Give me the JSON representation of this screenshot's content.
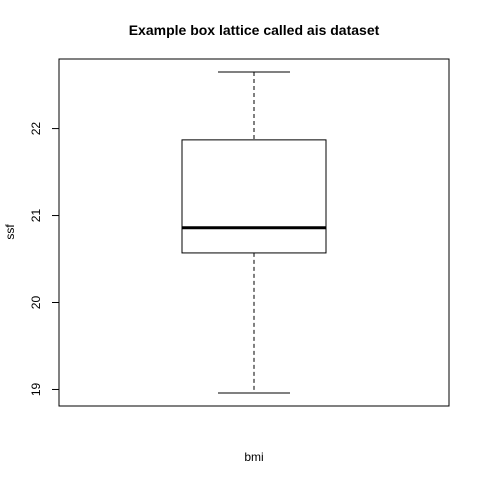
{
  "chart_data": {
    "type": "box",
    "title": "Example box lattice called ais dataset",
    "xlabel": "bmi",
    "ylabel": "ssf",
    "ylim": [
      18.81,
      22.8
    ],
    "yticks": [
      19,
      20,
      21,
      22
    ],
    "grid": false,
    "box": {
      "whisker_low": 18.96,
      "q1": 20.57,
      "median": 20.86,
      "q3": 21.87,
      "whisker_high": 22.65
    }
  }
}
